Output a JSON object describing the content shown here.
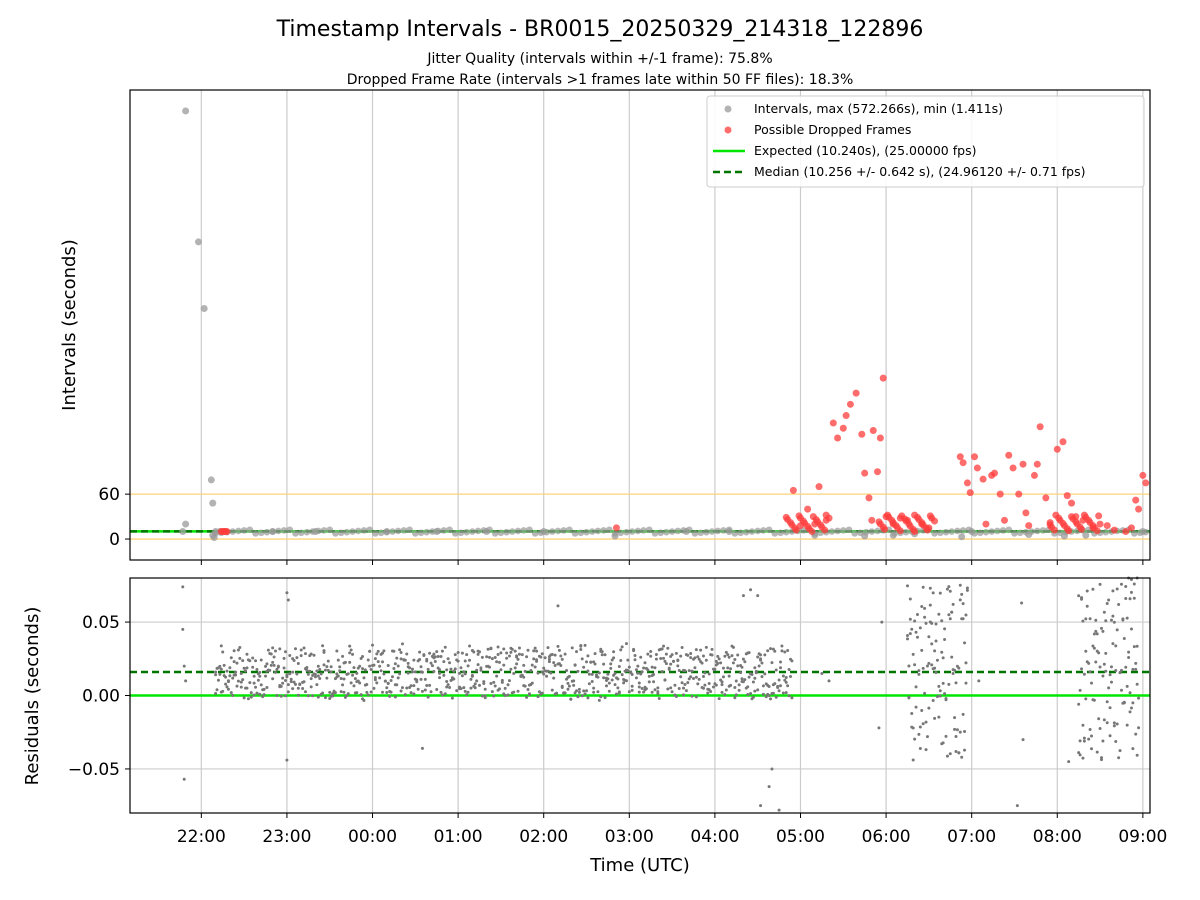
{
  "chart_data": [
    {
      "type": "scatter",
      "title": "Timestamp Intervals - BR0015_20250329_214318_122896",
      "subtitle_lines": [
        "Jitter Quality (intervals within +/-1 frame): 75.8%",
        "Dropped Frame Rate (intervals >1 frames late within 50 FF files): 18.3%"
      ],
      "xlabel": "",
      "ylabel": "Intervals (seconds)",
      "x_range": [
        "21:10",
        "09:05"
      ],
      "x_grid_ticks": [
        "22:00",
        "23:00",
        "00:00",
        "01:00",
        "02:00",
        "03:00",
        "04:00",
        "05:00",
        "06:00",
        "07:00",
        "08:00",
        "09:00"
      ],
      "ylim": [
        -28,
        600
      ],
      "y_ticks": [
        0,
        60
      ],
      "grid": "vertical",
      "reference_lines": [
        {
          "value": 0,
          "color": "#ffd27a"
        },
        {
          "value": 60,
          "color": "#ffd27a"
        }
      ],
      "legend_position": "top-right",
      "series": [
        {
          "name": "Intervals, max (572.266s), min (1.411s)",
          "color": "#999999",
          "marker": "circle",
          "points": [
            [
              "21:49",
              572
            ],
            [
              "21:58",
              397
            ],
            [
              "22:02",
              308
            ],
            [
              "22:07",
              79
            ],
            [
              "22:08",
              48
            ],
            [
              "21:49",
              20
            ],
            [
              "22:08",
              5
            ],
            [
              "22:09",
              2
            ],
            [
              "21:47",
              10
            ],
            [
              "22:13",
              10
            ],
            [
              "22:10",
              10
            ],
            [
              "22:50",
              10
            ],
            [
              "23:20",
              10
            ],
            [
              "00:10",
              10
            ],
            [
              "00:45",
              10
            ],
            [
              "01:20",
              10
            ],
            [
              "02:00",
              10
            ],
            [
              "02:50",
              4
            ],
            [
              "03:40",
              10
            ],
            [
              "04:10",
              10
            ],
            [
              "05:10",
              5
            ],
            [
              "05:45",
              4
            ],
            [
              "06:05",
              5
            ],
            [
              "06:20",
              7
            ],
            [
              "06:53",
              3
            ],
            [
              "07:00",
              10
            ],
            [
              "07:40",
              6
            ],
            [
              "08:05",
              4
            ],
            [
              "08:20",
              5
            ],
            [
              "09:00",
              10
            ]
          ]
        },
        {
          "name": "Possible Dropped Frames",
          "color": "#ff3b3b",
          "marker": "circle",
          "points": [
            [
              "22:14",
              10
            ],
            [
              "22:15",
              10
            ],
            [
              "22:16",
              10
            ],
            [
              "22:17",
              10
            ],
            [
              "22:18",
              10
            ],
            [
              "02:51",
              15
            ],
            [
              "04:55",
              65
            ],
            [
              "05:00",
              18
            ],
            [
              "05:05",
              40
            ],
            [
              "05:10",
              20
            ],
            [
              "05:13",
              70
            ],
            [
              "05:18",
              25
            ],
            [
              "05:23",
              155
            ],
            [
              "05:26",
              135
            ],
            [
              "05:30",
              148
            ],
            [
              "05:32",
              165
            ],
            [
              "05:35",
              180
            ],
            [
              "05:39",
              195
            ],
            [
              "05:43",
              140
            ],
            [
              "05:45",
              88
            ],
            [
              "05:48",
              55
            ],
            [
              "05:50",
              25
            ],
            [
              "05:51",
              145
            ],
            [
              "05:54",
              90
            ],
            [
              "05:56",
              135
            ],
            [
              "05:58",
              215
            ],
            [
              "06:00",
              30
            ],
            [
              "06:05",
              20
            ],
            [
              "06:10",
              28
            ],
            [
              "06:15",
              25
            ],
            [
              "06:20",
              32
            ],
            [
              "06:25",
              20
            ],
            [
              "06:30",
              15
            ],
            [
              "06:52",
              110
            ],
            [
              "06:54",
              102
            ],
            [
              "06:57",
              75
            ],
            [
              "06:59",
              62
            ],
            [
              "07:02",
              110
            ],
            [
              "07:04",
              95
            ],
            [
              "07:08",
              80
            ],
            [
              "07:10",
              20
            ],
            [
              "07:14",
              85
            ],
            [
              "07:16",
              88
            ],
            [
              "07:20",
              60
            ],
            [
              "07:23",
              25
            ],
            [
              "07:26",
              112
            ],
            [
              "07:29",
              95
            ],
            [
              "07:33",
              60
            ],
            [
              "07:36",
              100
            ],
            [
              "07:38",
              35
            ],
            [
              "07:40",
              18
            ],
            [
              "07:44",
              85
            ],
            [
              "07:46",
              100
            ],
            [
              "07:48",
              150
            ],
            [
              "07:52",
              55
            ],
            [
              "07:55",
              22
            ],
            [
              "08:00",
              120
            ],
            [
              "08:04",
              130
            ],
            [
              "08:07",
              58
            ],
            [
              "08:10",
              48
            ],
            [
              "08:13",
              30
            ],
            [
              "08:18",
              25
            ],
            [
              "08:25",
              15
            ],
            [
              "08:30",
              20
            ],
            [
              "08:35",
              18
            ],
            [
              "08:40",
              12
            ],
            [
              "08:48",
              10
            ],
            [
              "08:52",
              15
            ],
            [
              "08:55",
              52
            ],
            [
              "08:57",
              40
            ],
            [
              "09:00",
              85
            ],
            [
              "09:02",
              75
            ]
          ]
        },
        {
          "name": "Expected (10.240s), (25.00000 fps)",
          "color": "#00e600",
          "line": "solid",
          "y": 10.24
        },
        {
          "name": "Median (10.256 +/- 0.642 s), (24.96120 +/- 0.71 fps)",
          "color": "#007500",
          "line": "dashed",
          "y": 10.256
        }
      ]
    },
    {
      "type": "scatter",
      "xlabel": "Time (UTC)",
      "ylabel": "Residuals (seconds)",
      "x_range": [
        "21:10",
        "09:05"
      ],
      "x_ticks": [
        "22:00",
        "23:00",
        "00:00",
        "01:00",
        "02:00",
        "03:00",
        "04:00",
        "05:00",
        "06:00",
        "07:00",
        "08:00",
        "09:00"
      ],
      "ylim": [
        -0.08,
        0.08
      ],
      "y_ticks": [
        "−0.05",
        "0.00",
        "0.05"
      ],
      "y_tick_values": [
        -0.05,
        0,
        0.05
      ],
      "grid": "both",
      "series": [
        {
          "name": "",
          "color": "#888888",
          "marker": "dot",
          "note_points": "dense band around +0.016 from 22:10 to 04:55; scattered clusters 06:15-06:55 and 08:15-08:55"
        },
        {
          "name": "",
          "color": "#00e600",
          "line": "solid",
          "y": 0
        },
        {
          "name": "",
          "color": "#007500",
          "line": "dashed",
          "y": 0.016
        }
      ],
      "sample_points": [
        [
          "21:47",
          0.074
        ],
        [
          "21:47",
          0.045
        ],
        [
          "21:48",
          -0.057
        ],
        [
          "21:48",
          0.02
        ],
        [
          "21:49",
          0.01
        ],
        [
          "23:00",
          0.07
        ],
        [
          "23:01",
          0.065
        ],
        [
          "23:00",
          -0.044
        ],
        [
          "02:10",
          0.061
        ],
        [
          "00:35",
          -0.036
        ],
        [
          "04:20",
          0.068
        ],
        [
          "04:25",
          0.072
        ],
        [
          "04:30",
          0.068
        ],
        [
          "04:32",
          -0.075
        ],
        [
          "04:40",
          -0.05
        ],
        [
          "04:45",
          -0.078
        ],
        [
          "04:38",
          -0.062
        ],
        [
          "05:15",
          0.015
        ],
        [
          "05:20",
          0.01
        ],
        [
          "05:55",
          -0.022
        ],
        [
          "05:57",
          0.05
        ],
        [
          "07:05",
          0.01
        ],
        [
          "07:35",
          0.063
        ],
        [
          "07:36",
          -0.03
        ],
        [
          "07:32",
          -0.075
        ],
        [
          "08:08",
          -0.045
        ],
        [
          "08:50",
          0.08
        ],
        [
          "08:52",
          0.079
        ],
        [
          "08:56",
          0.08
        ]
      ]
    }
  ]
}
